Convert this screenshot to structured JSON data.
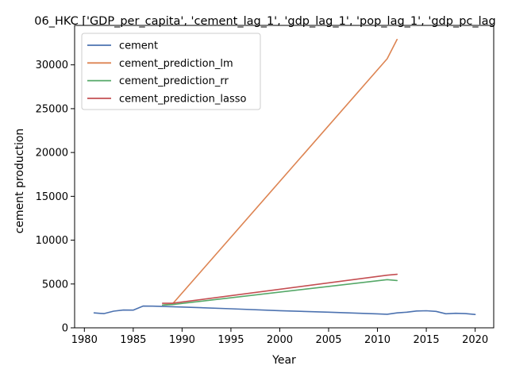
{
  "chart_data": {
    "type": "line",
    "title": "06_HKC ['GDP_per_capita', 'cement_lag_1', 'gdp_lag_1', 'pop_lag_1', 'gdp_pc_lag",
    "xlabel": "Year",
    "ylabel": "cement production",
    "xlim": [
      1979.0,
      2021.9
    ],
    "ylim": [
      0,
      34500
    ],
    "xticks": [
      1980,
      1985,
      1990,
      1995,
      2000,
      2005,
      2010,
      2015,
      2020
    ],
    "yticks": [
      0,
      5000,
      10000,
      15000,
      20000,
      25000,
      30000
    ],
    "grid": false,
    "legend_position": "upper-left",
    "series": [
      {
        "name": "cement",
        "color": "#4c72b0",
        "x": [
          1981,
          1982,
          1983,
          1984,
          1985,
          1986,
          1987,
          1988,
          1989,
          1990,
          1995,
          2000,
          2005,
          2010,
          2011,
          2012,
          2013,
          2014,
          2015,
          2016,
          2017,
          2018,
          2019,
          2020
        ],
        "y": [
          1700,
          1620,
          1900,
          2030,
          2020,
          2480,
          2470,
          2440,
          2410,
          2370,
          2170,
          1960,
          1780,
          1590,
          1550,
          1700,
          1780,
          1920,
          1950,
          1870,
          1600,
          1660,
          1620,
          1520
        ]
      },
      {
        "name": "cement_prediction_lm",
        "color": "#dd8452",
        "x": [
          1988,
          1989,
          2011,
          2012
        ],
        "y": [
          2600,
          2700,
          30700,
          32900
        ]
      },
      {
        "name": "cement_prediction_rr",
        "color": "#55a868",
        "x": [
          1988,
          1989,
          2011,
          2012
        ],
        "y": [
          2600,
          2650,
          5500,
          5400
        ]
      },
      {
        "name": "cement_prediction_lasso",
        "color": "#c44e52",
        "x": [
          1988,
          1989,
          2011,
          2012
        ],
        "y": [
          2800,
          2800,
          6000,
          6100
        ]
      }
    ]
  }
}
